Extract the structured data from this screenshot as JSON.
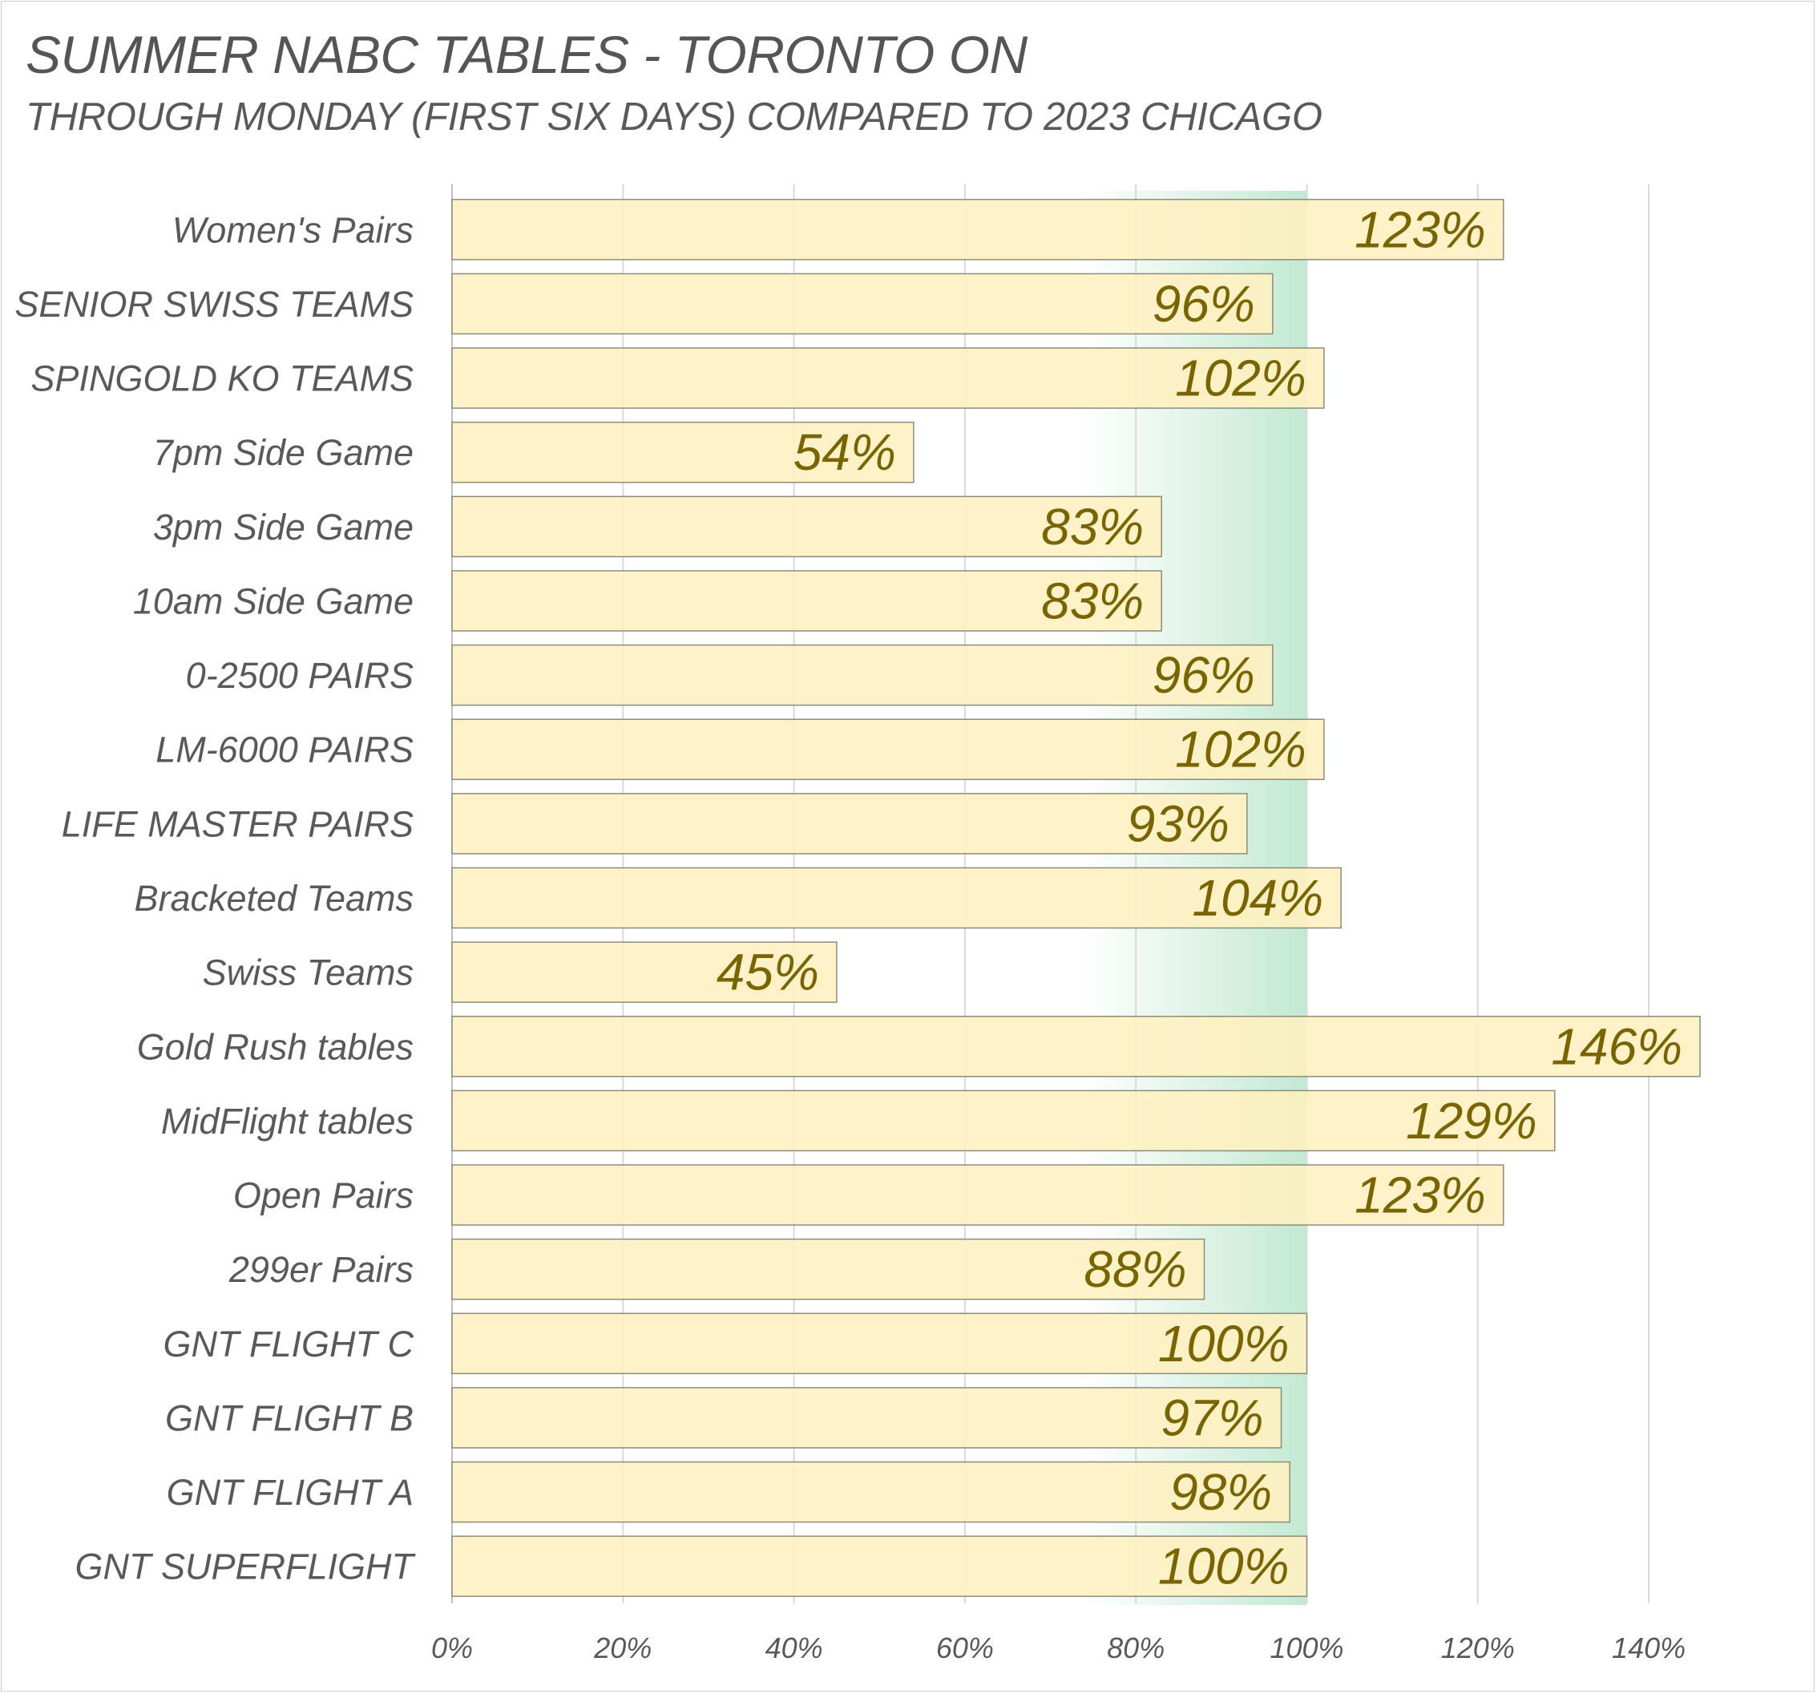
{
  "chart_data": {
    "type": "bar",
    "orientation": "horizontal",
    "title": "SUMMER NABC TABLES - TORONTO ON",
    "subtitle": "THROUGH MONDAY (FIRST SIX DAYS) COMPARED TO 2023 CHICAGO",
    "categories": [
      "Women's Pairs",
      "SENIOR SWISS TEAMS",
      "SPINGOLD KO TEAMS",
      "7pm Side Game",
      "3pm Side Game",
      "10am Side Game",
      "0-2500 PAIRS",
      "LM-6000 PAIRS",
      "LIFE MASTER PAIRS",
      "Bracketed Teams",
      "Swiss Teams",
      "Gold Rush tables",
      "MidFlight tables",
      "Open Pairs",
      "299er Pairs",
      "GNT FLIGHT C",
      "GNT FLIGHT B",
      "GNT FLIGHT A",
      "GNT SUPERFLIGHT"
    ],
    "values": [
      123,
      96,
      102,
      54,
      83,
      83,
      96,
      102,
      93,
      104,
      45,
      146,
      129,
      123,
      88,
      100,
      97,
      98,
      100
    ],
    "value_labels": [
      "123%",
      "96%",
      "102%",
      "54%",
      "83%",
      "83%",
      "96%",
      "102%",
      "93%",
      "104%",
      "45%",
      "146%",
      "129%",
      "123%",
      "88%",
      "100%",
      "97%",
      "98%",
      "100%"
    ],
    "xticks": [
      0,
      20,
      40,
      60,
      80,
      100,
      120,
      140
    ],
    "xtick_labels": [
      "0%",
      "20%",
      "40%",
      "60%",
      "80%",
      "100%",
      "120%",
      "140%"
    ],
    "xlim": [
      0,
      147
    ],
    "grid": true,
    "reference_line": 100,
    "colors": {
      "bar_fill": "#fff0c0",
      "bar_border": "#8c8c7a",
      "band_green": "#bfe8cf",
      "data_label": "#7a6400",
      "text": "#595959",
      "grid": "#d9d9d9"
    }
  }
}
